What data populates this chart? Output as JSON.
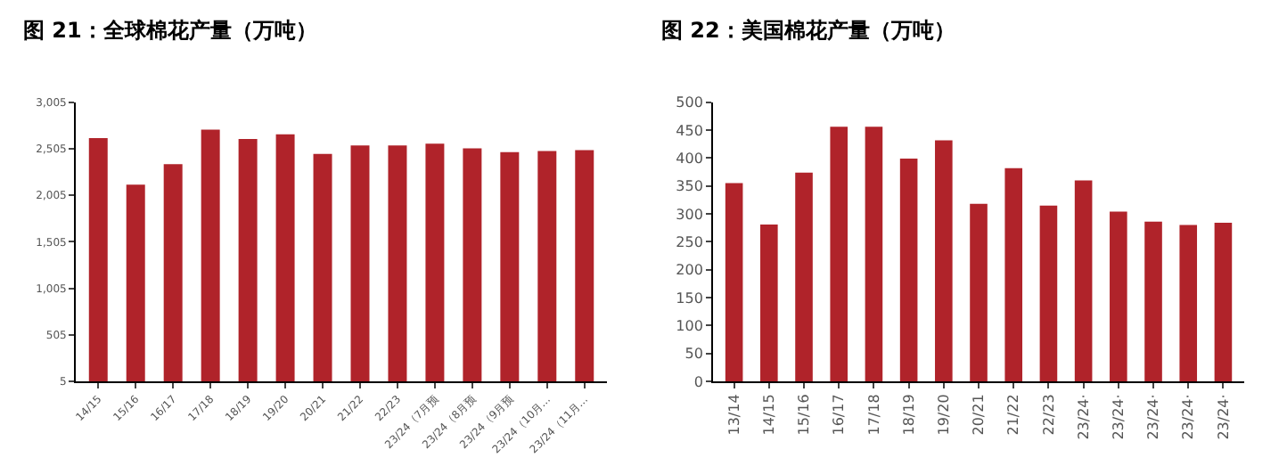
{
  "chart_data": [
    {
      "type": "bar",
      "title": "图 21：全球棉花产量（万吨）",
      "categories": [
        "14/15",
        "15/16",
        "16/17",
        "17/18",
        "18/19",
        "19/20",
        "20/21",
        "21/22",
        "22/23",
        "23/24（7月预",
        "23/24（8月预",
        "23/24（9月预",
        "23/24（10月…",
        "23/24（11月…"
      ],
      "series": [
        {
          "color": "#b0232a",
          "values": [
            2620,
            2120,
            2340,
            2710,
            2610,
            2660,
            2450,
            2540,
            2540,
            2560,
            2510,
            2470,
            2480,
            2490
          ]
        }
      ],
      "ylim": [
        5,
        3005
      ],
      "yticks": [
        {
          "value": 5,
          "label": "5"
        },
        {
          "value": 505,
          "label": "505"
        },
        {
          "value": 1005,
          "label": "1,005"
        },
        {
          "value": 1505,
          "label": "1,505"
        },
        {
          "value": 2005,
          "label": "2,005"
        },
        {
          "value": 2505,
          "label": "2,505"
        },
        {
          "value": 3005,
          "label": "3,005"
        }
      ]
    },
    {
      "type": "bar",
      "title": "图 22：美国棉花产量（万吨）",
      "categories": [
        "13/14",
        "14/15",
        "15/16",
        "16/17",
        "17/18",
        "18/19",
        "19/20",
        "20/21",
        "21/22",
        "22/23",
        "23/24·",
        "23/24·",
        "23/24·",
        "23/24·",
        "23/24·"
      ],
      "series": [
        {
          "color": "#b0232a",
          "values": [
            355,
            281,
            374,
            456,
            456,
            399,
            432,
            318,
            382,
            315,
            360,
            304,
            286,
            280,
            284
          ]
        }
      ],
      "ylim": [
        0,
        500
      ],
      "yticks": [
        0,
        50,
        100,
        150,
        200,
        250,
        300,
        350,
        400,
        450,
        500
      ]
    }
  ]
}
